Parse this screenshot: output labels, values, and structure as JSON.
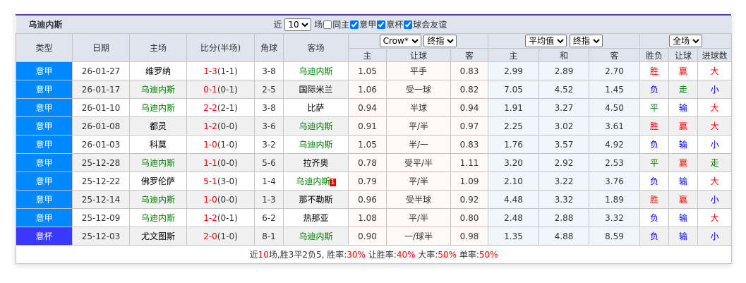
{
  "title": "乌迪内斯",
  "filter": {
    "prefix": "近",
    "count": "10",
    "suffix": "场",
    "checks": [
      {
        "label": "同主",
        "checked": false
      },
      {
        "label": "意甲",
        "checked": true
      },
      {
        "label": "意杯",
        "checked": true
      },
      {
        "label": "球会友谊",
        "checked": true
      }
    ]
  },
  "headers": {
    "type": "类型",
    "date": "日期",
    "home": "主场",
    "score": "比分(半场)",
    "corner": "角球",
    "away": "客场",
    "ah_company": "Crow*",
    "ah_kind": "终指",
    "eu_company": "平均值",
    "eu_kind": "终指",
    "scope": "全场",
    "ah_cols": [
      "主",
      "让球",
      "客"
    ],
    "eu_cols": [
      "主",
      "和",
      "客"
    ],
    "res_cols": [
      "胜负",
      "让球",
      "进球数"
    ]
  },
  "colors": {
    "league": "#0088ff",
    "cup": "#3a3aff",
    "team_highlight": "#008000",
    "score": "#ff0000"
  },
  "rows": [
    {
      "league": "意甲",
      "date": "26-01-27",
      "home": "维罗纳",
      "score": "1-3",
      "half": "(1-1)",
      "corner": "3-8",
      "away": "乌迪内斯",
      "ah_h": "1.05",
      "line": "平手",
      "ah_a": "0.83",
      "eu_h": "2.99",
      "eu_d": "2.89",
      "eu_a": "2.70",
      "wl": "胜",
      "ahr": "赢",
      "ou": "大",
      "hl": "away"
    },
    {
      "league": "意甲",
      "date": "26-01-17",
      "home": "乌迪内斯",
      "score": "0-1",
      "half": "(0-1)",
      "corner": "2-5",
      "away": "国际米兰",
      "ah_h": "1.06",
      "line": "受一球",
      "ah_a": "0.82",
      "eu_h": "7.05",
      "eu_d": "4.52",
      "eu_a": "1.45",
      "wl": "负",
      "ahr": "走",
      "ou": "小",
      "hl": "home"
    },
    {
      "league": "意甲",
      "date": "26-01-10",
      "home": "乌迪内斯",
      "score": "2-2",
      "half": "(2-1)",
      "corner": "3-8",
      "away": "比萨",
      "ah_h": "0.94",
      "line": "半球",
      "ah_a": "0.94",
      "eu_h": "1.91",
      "eu_d": "3.27",
      "eu_a": "4.50",
      "wl": "平",
      "ahr": "输",
      "ou": "大",
      "hl": "home"
    },
    {
      "league": "意甲",
      "date": "26-01-08",
      "home": "都灵",
      "score": "1-2",
      "half": "(0-0)",
      "corner": "3-6",
      "away": "乌迪内斯",
      "ah_h": "0.91",
      "line": "平/半",
      "ah_a": "0.97",
      "eu_h": "2.25",
      "eu_d": "3.02",
      "eu_a": "3.61",
      "wl": "胜",
      "ahr": "赢",
      "ou": "大",
      "hl": "away"
    },
    {
      "league": "意甲",
      "date": "26-01-03",
      "home": "科莫",
      "score": "1-0",
      "half": "(1-0)",
      "corner": "3-2",
      "away": "乌迪内斯",
      "ah_h": "1.05",
      "line": "半/一",
      "ah_a": "0.83",
      "eu_h": "1.76",
      "eu_d": "3.57",
      "eu_a": "4.92",
      "wl": "负",
      "ahr": "输",
      "ou": "小",
      "hl": "away"
    },
    {
      "league": "意甲",
      "date": "25-12-28",
      "home": "乌迪内斯",
      "score": "1-1",
      "half": "(0-0)",
      "corner": "5-6",
      "away": "拉齐奥",
      "ah_h": "0.78",
      "line": "受平/半",
      "ah_a": "1.11",
      "eu_h": "3.20",
      "eu_d": "2.92",
      "eu_a": "2.53",
      "wl": "平",
      "ahr": "赢",
      "ou": "走",
      "hl": "home"
    },
    {
      "league": "意甲",
      "date": "25-12-22",
      "home": "佛罗伦萨",
      "score": "5-1",
      "half": "(3-0)",
      "corner": "1-4",
      "away": "乌迪内斯",
      "badge": "1",
      "ah_h": "0.79",
      "line": "平/半",
      "ah_a": "1.09",
      "eu_h": "2.10",
      "eu_d": "3.22",
      "eu_a": "3.76",
      "wl": "负",
      "ahr": "输",
      "ou": "大",
      "hl": "away"
    },
    {
      "league": "意甲",
      "date": "25-12-14",
      "home": "乌迪内斯",
      "score": "1-0",
      "half": "(0-0)",
      "corner": "1-3",
      "away": "那不勒斯",
      "ah_h": "0.96",
      "line": "受半球",
      "ah_a": "0.92",
      "eu_h": "4.48",
      "eu_d": "3.32",
      "eu_a": "1.89",
      "wl": "胜",
      "ahr": "赢",
      "ou": "小",
      "hl": "home"
    },
    {
      "league": "意甲",
      "date": "25-12-09",
      "home": "乌迪内斯",
      "score": "1-2",
      "half": "(0-1)",
      "corner": "6-2",
      "away": "热那亚",
      "ah_h": "1.08",
      "line": "平/半",
      "ah_a": "0.80",
      "eu_h": "2.48",
      "eu_d": "2.88",
      "eu_a": "3.32",
      "wl": "负",
      "ahr": "输",
      "ou": "大",
      "hl": "home"
    },
    {
      "league": "意杯",
      "date": "25-12-03",
      "home": "尤文图斯",
      "score": "2-0",
      "half": "(1-0)",
      "corner": "8-1",
      "away": "乌迪内斯",
      "ah_h": "0.90",
      "line": "一/球半",
      "ah_a": "0.98",
      "eu_h": "1.35",
      "eu_d": "4.88",
      "eu_a": "8.59",
      "wl": "负",
      "ahr": "输",
      "ou": "小",
      "hl": "away",
      "cup": true
    }
  ],
  "summary": {
    "p1": "近",
    "n": "10",
    "p2": "场,胜3平2负5, 胜率:",
    "win": "30%",
    "p3": " 让胜率:",
    "ahwin": "40%",
    "p4": " 大率:",
    "big": "50%",
    "p5": " 单率:",
    "odd": "50%"
  }
}
